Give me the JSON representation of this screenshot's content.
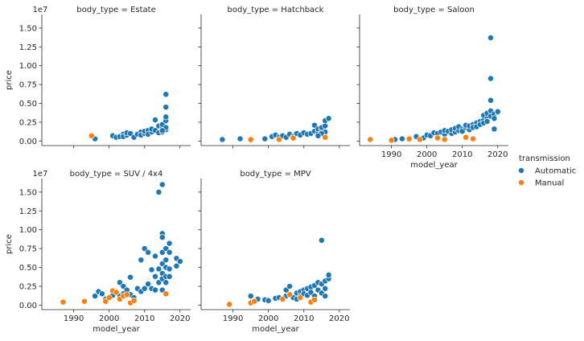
{
  "chart_data": {
    "type": "scatter",
    "facet_var": "body_type",
    "xlabel": "model_year",
    "ylabel": "price",
    "y_offset_label": "1e7",
    "xlim": [
      1981,
      2023
    ],
    "ylim": [
      -0.06,
      1.68
    ],
    "x_ticks": [
      1990,
      2000,
      2010,
      2020
    ],
    "y_ticks": [
      0.0,
      0.25,
      0.5,
      0.75,
      1.0,
      1.25,
      1.5
    ],
    "y_tick_labels": [
      "0.00",
      "0.25",
      "0.50",
      "0.75",
      "1.00",
      "1.25",
      "1.50"
    ],
    "legend": {
      "title": "transmission",
      "position": "right",
      "entries": [
        {
          "label": "Automatic",
          "color": "#1f77b4"
        },
        {
          "label": "Manual",
          "color": "#ff7f0e"
        }
      ]
    },
    "panels": [
      {
        "title": "body_type = Estate",
        "series": [
          {
            "name": "Automatic",
            "points": [
              [
                1996,
                0.03
              ],
              [
                2001,
                0.07
              ],
              [
                2002,
                0.05
              ],
              [
                2003,
                0.06
              ],
              [
                2004,
                0.09
              ],
              [
                2004,
                0.06
              ],
              [
                2005,
                0.08
              ],
              [
                2005,
                0.11
              ],
              [
                2006,
                0.1
              ],
              [
                2007,
                0.05
              ],
              [
                2008,
                0.09
              ],
              [
                2009,
                0.12
              ],
              [
                2009,
                0.08
              ],
              [
                2010,
                0.1
              ],
              [
                2010,
                0.13
              ],
              [
                2011,
                0.14
              ],
              [
                2011,
                0.09
              ],
              [
                2012,
                0.12
              ],
              [
                2012,
                0.16
              ],
              [
                2013,
                0.28
              ],
              [
                2013,
                0.14
              ],
              [
                2014,
                0.11
              ],
              [
                2014,
                0.2
              ],
              [
                2015,
                0.17
              ],
              [
                2015,
                0.22
              ],
              [
                2015,
                0.12
              ],
              [
                2016,
                0.27
              ],
              [
                2016,
                0.32
              ],
              [
                2016,
                0.45
              ],
              [
                2016,
                0.62
              ],
              [
                2016,
                0.15
              ],
              [
                2016,
                0.18
              ],
              [
                2015,
                0.14
              ]
            ]
          },
          {
            "name": "Manual",
            "points": [
              [
                1995,
                0.07
              ]
            ]
          }
        ]
      },
      {
        "title": "body_type = Hatchback",
        "series": [
          {
            "name": "Automatic",
            "points": [
              [
                1987,
                0.02
              ],
              [
                1992,
                0.03
              ],
              [
                1995,
                0.01
              ],
              [
                1999,
                0.03
              ],
              [
                2001,
                0.06
              ],
              [
                2002,
                0.08
              ],
              [
                2003,
                0.05
              ],
              [
                2004,
                0.07
              ],
              [
                2005,
                0.05
              ],
              [
                2006,
                0.09
              ],
              [
                2007,
                0.06
              ],
              [
                2008,
                0.1
              ],
              [
                2009,
                0.08
              ],
              [
                2010,
                0.11
              ],
              [
                2011,
                0.09
              ],
              [
                2012,
                0.1
              ],
              [
                2013,
                0.13
              ],
              [
                2013,
                0.21
              ],
              [
                2014,
                0.11
              ],
              [
                2014,
                0.16
              ],
              [
                2015,
                0.14
              ],
              [
                2015,
                0.18
              ],
              [
                2016,
                0.2
              ],
              [
                2016,
                0.27
              ],
              [
                2017,
                0.3
              ],
              [
                2016,
                0.12
              ],
              [
                2015,
                0.1
              ],
              [
                2014,
                0.07
              ]
            ]
          },
          {
            "name": "Manual",
            "points": [
              [
                1995,
                0.02
              ],
              [
                2003,
                0.02
              ],
              [
                2007,
                0.04
              ],
              [
                2016,
                0.05
              ]
            ]
          }
        ]
      },
      {
        "title": "body_type = Saloon",
        "series": [
          {
            "name": "Automatic",
            "points": [
              [
                1991,
                0.02
              ],
              [
                1993,
                0.03
              ],
              [
                1995,
                0.02
              ],
              [
                1997,
                0.06
              ],
              [
                1999,
                0.04
              ],
              [
                2000,
                0.08
              ],
              [
                2001,
                0.07
              ],
              [
                2002,
                0.11
              ],
              [
                2003,
                0.1
              ],
              [
                2004,
                0.12
              ],
              [
                2005,
                0.09
              ],
              [
                2005,
                0.14
              ],
              [
                2006,
                0.13
              ],
              [
                2007,
                0.1
              ],
              [
                2007,
                0.15
              ],
              [
                2008,
                0.12
              ],
              [
                2008,
                0.17
              ],
              [
                2009,
                0.14
              ],
              [
                2009,
                0.19
              ],
              [
                2010,
                0.16
              ],
              [
                2010,
                0.13
              ],
              [
                2011,
                0.18
              ],
              [
                2011,
                0.21
              ],
              [
                2012,
                0.15
              ],
              [
                2012,
                0.2
              ],
              [
                2013,
                0.22
              ],
              [
                2013,
                0.18
              ],
              [
                2014,
                0.24
              ],
              [
                2014,
                0.19
              ],
              [
                2015,
                0.26
              ],
              [
                2015,
                0.22
              ],
              [
                2016,
                0.28
              ],
              [
                2016,
                0.34
              ],
              [
                2016,
                0.24
              ],
              [
                2017,
                0.3
              ],
              [
                2017,
                0.37
              ],
              [
                2017,
                0.26
              ],
              [
                2018,
                1.37
              ],
              [
                2018,
                0.83
              ],
              [
                2018,
                0.54
              ],
              [
                2018,
                0.4
              ],
              [
                2018,
                0.33
              ],
              [
                2019,
                0.36
              ],
              [
                2019,
                0.3
              ],
              [
                2019,
                0.16
              ],
              [
                2020,
                0.38
              ],
              [
                2020,
                0.39
              ]
            ]
          },
          {
            "name": "Manual",
            "points": [
              [
                1984,
                0.02
              ],
              [
                1990,
                0.01
              ],
              [
                1995,
                0.03
              ],
              [
                1998,
                0.02
              ],
              [
                2003,
                0.04
              ],
              [
                2005,
                0.02
              ],
              [
                2011,
                0.05
              ],
              [
                2013,
                0.03
              ]
            ]
          }
        ]
      },
      {
        "title": "body_type = SUV / 4x4",
        "series": [
          {
            "name": "Automatic",
            "points": [
              [
                1996,
                0.12
              ],
              [
                1997,
                0.18
              ],
              [
                1998,
                0.15
              ],
              [
                1999,
                0.08
              ],
              [
                2000,
                0.1
              ],
              [
                2001,
                0.13
              ],
              [
                2002,
                0.18
              ],
              [
                2003,
                0.3
              ],
              [
                2003,
                0.12
              ],
              [
                2004,
                0.25
              ],
              [
                2004,
                0.15
              ],
              [
                2005,
                0.2
              ],
              [
                2006,
                0.37
              ],
              [
                2006,
                0.14
              ],
              [
                2007,
                0.1
              ],
              [
                2008,
                0.22
              ],
              [
                2009,
                0.6
              ],
              [
                2009,
                0.18
              ],
              [
                2010,
                0.75
              ],
              [
                2010,
                0.22
              ],
              [
                2011,
                0.28
              ],
              [
                2011,
                0.7
              ],
              [
                2012,
                0.22
              ],
              [
                2012,
                0.47
              ],
              [
                2013,
                0.38
              ],
              [
                2013,
                0.65
              ],
              [
                2013,
                0.2
              ],
              [
                2014,
                1.5
              ],
              [
                2014,
                0.48
              ],
              [
                2014,
                0.3
              ],
              [
                2015,
                1.6
              ],
              [
                2015,
                0.95
              ],
              [
                2015,
                0.9
              ],
              [
                2015,
                0.7
              ],
              [
                2015,
                0.55
              ],
              [
                2015,
                0.42
              ],
              [
                2015,
                0.35
              ],
              [
                2015,
                0.2
              ],
              [
                2016,
                0.75
              ],
              [
                2016,
                0.6
              ],
              [
                2016,
                0.5
              ],
              [
                2016,
                0.38
              ],
              [
                2016,
                0.3
              ],
              [
                2017,
                0.82
              ],
              [
                2017,
                0.7
              ],
              [
                2017,
                0.48
              ],
              [
                2017,
                0.38
              ],
              [
                2019,
                0.62
              ],
              [
                2019,
                0.52
              ],
              [
                2020,
                0.58
              ],
              [
                2016,
                0.15
              ]
            ]
          },
          {
            "name": "Manual",
            "points": [
              [
                1987,
                0.04
              ],
              [
                1993,
                0.05
              ],
              [
                1999,
                0.05
              ],
              [
                2000,
                0.1
              ],
              [
                2001,
                0.19
              ],
              [
                2002,
                0.17
              ],
              [
                2003,
                0.08
              ],
              [
                2004,
                0.12
              ],
              [
                2005,
                0.14
              ],
              [
                2006,
                0.03
              ],
              [
                2007,
                0.06
              ],
              [
                2016,
                0.15
              ]
            ]
          }
        ]
      },
      {
        "title": "body_type = MPV",
        "series": [
          {
            "name": "Automatic",
            "points": [
              [
                1995,
                0.12
              ],
              [
                1997,
                0.08
              ],
              [
                1999,
                0.07
              ],
              [
                2000,
                0.06
              ],
              [
                2002,
                0.09
              ],
              [
                2003,
                0.1
              ],
              [
                2004,
                0.07
              ],
              [
                2005,
                0.12
              ],
              [
                2005,
                0.2
              ],
              [
                2006,
                0.14
              ],
              [
                2006,
                0.25
              ],
              [
                2007,
                0.1
              ],
              [
                2008,
                0.16
              ],
              [
                2008,
                0.08
              ],
              [
                2009,
                0.18
              ],
              [
                2009,
                0.12
              ],
              [
                2010,
                0.2
              ],
              [
                2010,
                0.15
              ],
              [
                2011,
                0.22
              ],
              [
                2011,
                0.13
              ],
              [
                2012,
                0.24
              ],
              [
                2012,
                0.17
              ],
              [
                2013,
                0.26
              ],
              [
                2013,
                0.12
              ],
              [
                2014,
                0.3
              ],
              [
                2014,
                0.2
              ],
              [
                2015,
                0.28
              ],
              [
                2015,
                0.16
              ],
              [
                2015,
                0.86
              ],
              [
                2016,
                0.32
              ],
              [
                2016,
                0.22
              ],
              [
                2016,
                0.12
              ],
              [
                2017,
                0.35
              ],
              [
                2017,
                0.4
              ]
            ]
          },
          {
            "name": "Manual",
            "points": [
              [
                1989,
                0.01
              ],
              [
                1995,
                0.03
              ],
              [
                1996,
                0.05
              ],
              [
                2004,
                0.08
              ],
              [
                2006,
                0.14
              ],
              [
                2009,
                0.1
              ],
              [
                2012,
                0.04
              ],
              [
                2013,
                0.07
              ]
            ]
          }
        ]
      }
    ]
  }
}
